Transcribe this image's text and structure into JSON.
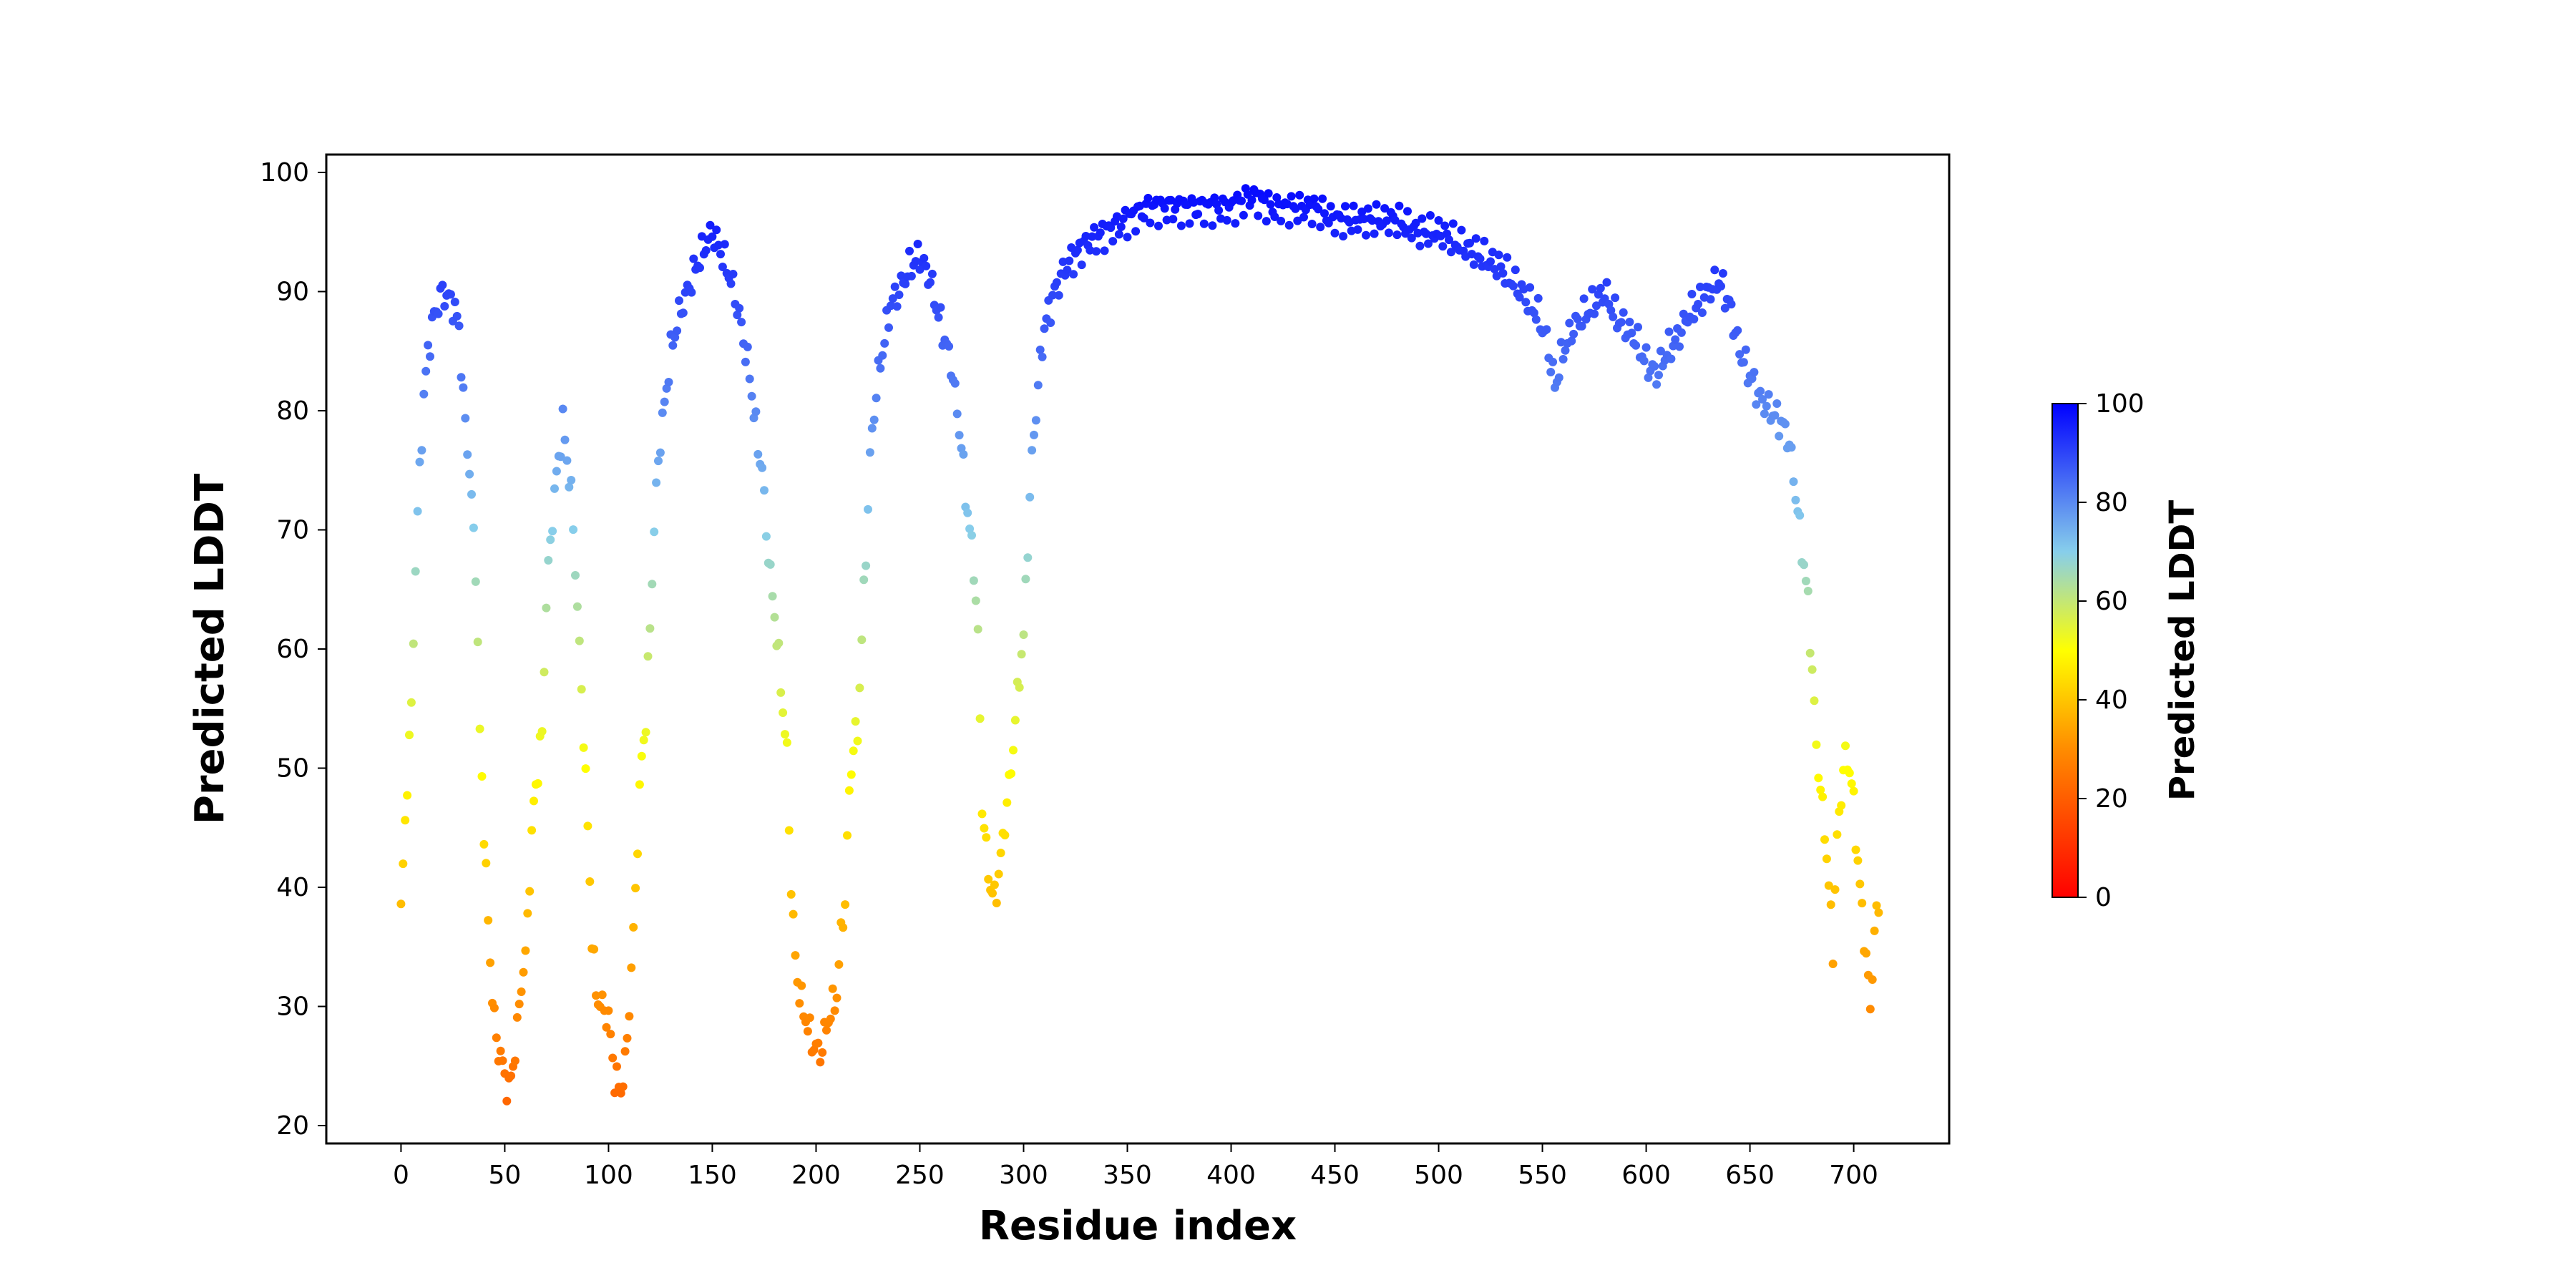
{
  "chart_data": {
    "type": "scatter",
    "title": "",
    "xlabel": "Residue index",
    "ylabel": "Predicted LDDT",
    "xlim": [
      -36,
      746
    ],
    "ylim": [
      18.5,
      101.5
    ],
    "xticks": [
      0,
      50,
      100,
      150,
      200,
      250,
      300,
      350,
      400,
      450,
      500,
      550,
      600,
      650,
      700
    ],
    "yticks": [
      20,
      30,
      40,
      50,
      60,
      70,
      80,
      90,
      100
    ],
    "grid": false,
    "legend": "none",
    "colorbar": {
      "label": "Predicted LDDT",
      "range": [
        0,
        100
      ],
      "ticks": [
        0,
        20,
        40,
        60,
        80,
        100
      ],
      "placement": "right",
      "colors": [
        "#ff0000",
        "#ff8c00",
        "#ffff00",
        "#87ceeb",
        "#0000ff"
      ]
    },
    "anchors": [
      [
        0,
        38
      ],
      [
        3,
        49
      ],
      [
        5,
        55
      ],
      [
        7,
        67
      ],
      [
        9,
        75
      ],
      [
        11,
        81
      ],
      [
        13,
        85
      ],
      [
        16,
        88
      ],
      [
        20,
        90
      ],
      [
        25,
        89
      ],
      [
        28,
        87
      ],
      [
        30,
        81
      ],
      [
        33,
        75
      ],
      [
        36,
        67
      ],
      [
        38,
        53
      ],
      [
        40,
        45
      ],
      [
        42,
        37
      ],
      [
        44,
        31
      ],
      [
        46,
        27
      ],
      [
        48,
        26
      ],
      [
        50,
        24
      ],
      [
        52,
        23
      ],
      [
        54,
        25
      ],
      [
        56,
        28
      ],
      [
        58,
        32
      ],
      [
        60,
        34
      ],
      [
        62,
        41
      ],
      [
        64,
        47
      ],
      [
        66,
        50
      ],
      [
        68,
        53
      ],
      [
        70,
        64
      ],
      [
        72,
        69
      ],
      [
        74,
        73
      ],
      [
        76,
        76
      ],
      [
        78,
        79
      ],
      [
        80,
        76
      ],
      [
        82,
        73
      ],
      [
        84,
        67
      ],
      [
        86,
        60
      ],
      [
        88,
        53
      ],
      [
        90,
        45
      ],
      [
        92,
        36
      ],
      [
        94,
        31
      ],
      [
        97,
        30
      ],
      [
        100,
        29
      ],
      [
        103,
        24
      ],
      [
        106,
        23
      ],
      [
        108,
        25
      ],
      [
        110,
        30
      ],
      [
        112,
        36
      ],
      [
        114,
        44
      ],
      [
        116,
        51
      ],
      [
        118,
        54
      ],
      [
        120,
        62
      ],
      [
        122,
        70
      ],
      [
        124,
        76
      ],
      [
        126,
        79
      ],
      [
        128,
        82
      ],
      [
        130,
        85
      ],
      [
        134,
        88
      ],
      [
        138,
        90
      ],
      [
        142,
        92
      ],
      [
        147,
        94
      ],
      [
        150,
        95
      ],
      [
        155,
        93
      ],
      [
        159,
        91
      ],
      [
        163,
        88
      ],
      [
        166,
        85
      ],
      [
        168,
        83
      ],
      [
        170,
        80
      ],
      [
        172,
        77
      ],
      [
        174,
        75
      ],
      [
        176,
        70
      ],
      [
        178,
        66
      ],
      [
        180,
        63
      ],
      [
        182,
        59
      ],
      [
        184,
        55
      ],
      [
        186,
        51
      ],
      [
        188,
        40
      ],
      [
        190,
        34
      ],
      [
        192,
        31
      ],
      [
        195,
        29
      ],
      [
        198,
        27
      ],
      [
        202,
        26
      ],
      [
        206,
        29
      ],
      [
        210,
        31
      ],
      [
        212,
        36
      ],
      [
        214,
        39
      ],
      [
        216,
        48
      ],
      [
        218,
        52
      ],
      [
        220,
        53
      ],
      [
        222,
        61
      ],
      [
        224,
        68
      ],
      [
        226,
        76
      ],
      [
        228,
        80
      ],
      [
        230,
        83
      ],
      [
        233,
        86
      ],
      [
        236,
        89
      ],
      [
        240,
        90
      ],
      [
        245,
        92
      ],
      [
        250,
        93
      ],
      [
        255,
        91
      ],
      [
        259,
        88
      ],
      [
        262,
        86
      ],
      [
        265,
        84
      ],
      [
        268,
        80
      ],
      [
        270,
        77
      ],
      [
        272,
        73
      ],
      [
        274,
        70
      ],
      [
        276,
        67
      ],
      [
        278,
        61
      ],
      [
        280,
        47
      ],
      [
        282,
        43
      ],
      [
        284,
        40
      ],
      [
        286,
        39
      ],
      [
        288,
        41
      ],
      [
        290,
        44
      ],
      [
        292,
        47
      ],
      [
        294,
        50
      ],
      [
        296,
        54
      ],
      [
        298,
        58
      ],
      [
        300,
        61
      ],
      [
        302,
        69
      ],
      [
        304,
        76
      ],
      [
        306,
        80
      ],
      [
        308,
        84
      ],
      [
        310,
        87
      ],
      [
        315,
        90
      ],
      [
        320,
        92
      ],
      [
        330,
        94
      ],
      [
        340,
        95
      ],
      [
        350,
        96
      ],
      [
        360,
        97
      ],
      [
        375,
        97
      ],
      [
        390,
        97
      ],
      [
        400,
        97
      ],
      [
        410,
        98
      ],
      [
        420,
        97
      ],
      [
        430,
        97
      ],
      [
        440,
        97
      ],
      [
        450,
        96
      ],
      [
        460,
        96
      ],
      [
        470,
        96
      ],
      [
        480,
        96
      ],
      [
        490,
        95
      ],
      [
        500,
        95
      ],
      [
        510,
        94
      ],
      [
        520,
        93
      ],
      [
        530,
        92
      ],
      [
        540,
        90
      ],
      [
        548,
        88
      ],
      [
        552,
        86
      ],
      [
        556,
        82
      ],
      [
        560,
        85
      ],
      [
        565,
        87
      ],
      [
        570,
        88
      ],
      [
        575,
        89
      ],
      [
        580,
        90
      ],
      [
        585,
        88
      ],
      [
        590,
        87
      ],
      [
        595,
        86
      ],
      [
        600,
        84
      ],
      [
        605,
        83
      ],
      [
        610,
        85
      ],
      [
        615,
        86
      ],
      [
        620,
        88
      ],
      [
        625,
        89
      ],
      [
        630,
        90
      ],
      [
        635,
        91
      ],
      [
        640,
        89
      ],
      [
        645,
        85
      ],
      [
        650,
        83
      ],
      [
        655,
        81
      ],
      [
        660,
        80
      ],
      [
        665,
        79
      ],
      [
        668,
        78
      ],
      [
        670,
        76
      ],
      [
        672,
        73
      ],
      [
        674,
        70
      ],
      [
        676,
        67
      ],
      [
        678,
        64
      ],
      [
        680,
        58
      ],
      [
        682,
        52
      ],
      [
        684,
        48
      ],
      [
        686,
        45
      ],
      [
        688,
        40
      ],
      [
        690,
        35
      ],
      [
        692,
        44
      ],
      [
        694,
        48
      ],
      [
        696,
        51
      ],
      [
        698,
        50
      ],
      [
        700,
        47
      ],
      [
        702,
        42
      ],
      [
        704,
        38
      ],
      [
        706,
        34
      ],
      [
        708,
        30
      ],
      [
        710,
        36
      ],
      [
        712,
        39
      ]
    ]
  }
}
